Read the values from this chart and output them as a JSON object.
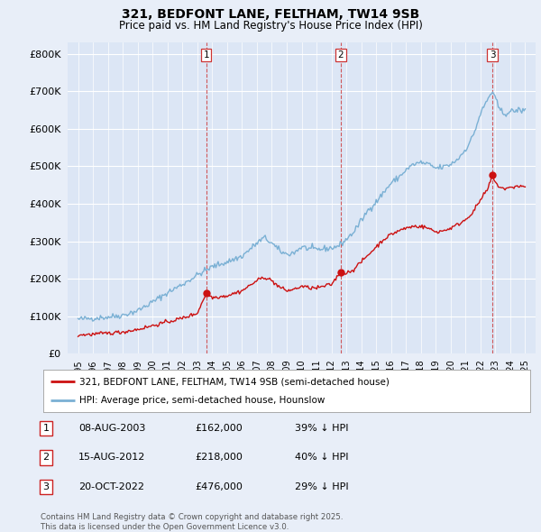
{
  "title": "321, BEDFONT LANE, FELTHAM, TW14 9SB",
  "subtitle": "Price paid vs. HM Land Registry's House Price Index (HPI)",
  "background_color": "#e8eef8",
  "plot_background": "#dce6f5",
  "sale_info": [
    {
      "num": "1",
      "date": "08-AUG-2003",
      "price": "£162,000",
      "hpi": "39% ↓ HPI"
    },
    {
      "num": "2",
      "date": "15-AUG-2012",
      "price": "£218,000",
      "hpi": "40% ↓ HPI"
    },
    {
      "num": "3",
      "date": "20-OCT-2022",
      "price": "£476,000",
      "hpi": "29% ↓ HPI"
    }
  ],
  "legend_red_label": "321, BEDFONT LANE, FELTHAM, TW14 9SB (semi-detached house)",
  "legend_blue_label": "HPI: Average price, semi-detached house, Hounslow",
  "footnote": "Contains HM Land Registry data © Crown copyright and database right 2025.\nThis data is licensed under the Open Government Licence v3.0.",
  "ylim": [
    0,
    830000
  ],
  "yticks": [
    0,
    100000,
    200000,
    300000,
    400000,
    500000,
    600000,
    700000,
    800000
  ],
  "red_line_color": "#cc1111",
  "blue_line_color": "#7ab0d4",
  "vline_color": "#cc3333",
  "dot_color": "#cc1111",
  "sale_year_decimals": [
    2003.6,
    2012.63,
    2022.8
  ],
  "sale_prices": [
    162000,
    218000,
    476000
  ],
  "hpi_anchors": [
    [
      1995.0,
      92000
    ],
    [
      1996.0,
      95000
    ],
    [
      1997.0,
      98000
    ],
    [
      1998.0,
      103000
    ],
    [
      1999.0,
      115000
    ],
    [
      2000.0,
      138000
    ],
    [
      2001.0,
      163000
    ],
    [
      2002.0,
      185000
    ],
    [
      2003.0,
      210000
    ],
    [
      2004.0,
      232000
    ],
    [
      2005.0,
      245000
    ],
    [
      2006.0,
      260000
    ],
    [
      2007.0,
      295000
    ],
    [
      2007.5,
      310000
    ],
    [
      2008.0,
      295000
    ],
    [
      2008.5,
      275000
    ],
    [
      2009.0,
      265000
    ],
    [
      2009.5,
      270000
    ],
    [
      2010.0,
      285000
    ],
    [
      2010.5,
      280000
    ],
    [
      2011.0,
      278000
    ],
    [
      2011.5,
      280000
    ],
    [
      2012.0,
      282000
    ],
    [
      2012.5,
      288000
    ],
    [
      2013.0,
      305000
    ],
    [
      2013.5,
      325000
    ],
    [
      2014.0,
      355000
    ],
    [
      2014.5,
      385000
    ],
    [
      2015.0,
      405000
    ],
    [
      2015.5,
      430000
    ],
    [
      2016.0,
      455000
    ],
    [
      2016.5,
      470000
    ],
    [
      2017.0,
      490000
    ],
    [
      2017.5,
      505000
    ],
    [
      2018.0,
      510000
    ],
    [
      2018.5,
      505000
    ],
    [
      2019.0,
      495000
    ],
    [
      2019.5,
      498000
    ],
    [
      2020.0,
      505000
    ],
    [
      2020.5,
      520000
    ],
    [
      2021.0,
      545000
    ],
    [
      2021.5,
      580000
    ],
    [
      2022.0,
      640000
    ],
    [
      2022.5,
      680000
    ],
    [
      2022.8,
      700000
    ],
    [
      2023.0,
      680000
    ],
    [
      2023.3,
      650000
    ],
    [
      2023.6,
      640000
    ],
    [
      2024.0,
      645000
    ],
    [
      2024.5,
      650000
    ],
    [
      2025.0,
      648000
    ]
  ],
  "red_anchors": [
    [
      1995.0,
      50000
    ],
    [
      1996.0,
      52000
    ],
    [
      1997.0,
      55000
    ],
    [
      1998.0,
      58000
    ],
    [
      1999.0,
      65000
    ],
    [
      2000.0,
      75000
    ],
    [
      2001.0,
      85000
    ],
    [
      2002.0,
      95000
    ],
    [
      2003.0,
      108000
    ],
    [
      2003.6,
      162000
    ],
    [
      2004.0,
      150000
    ],
    [
      2005.0,
      155000
    ],
    [
      2006.0,
      168000
    ],
    [
      2007.0,
      195000
    ],
    [
      2007.5,
      205000
    ],
    [
      2008.0,
      195000
    ],
    [
      2008.5,
      178000
    ],
    [
      2009.0,
      168000
    ],
    [
      2009.5,
      172000
    ],
    [
      2010.0,
      180000
    ],
    [
      2010.5,
      176000
    ],
    [
      2011.0,
      175000
    ],
    [
      2011.5,
      180000
    ],
    [
      2012.0,
      185000
    ],
    [
      2012.63,
      218000
    ],
    [
      2013.0,
      215000
    ],
    [
      2013.5,
      225000
    ],
    [
      2014.0,
      245000
    ],
    [
      2014.5,
      265000
    ],
    [
      2015.0,
      285000
    ],
    [
      2015.5,
      305000
    ],
    [
      2016.0,
      318000
    ],
    [
      2016.5,
      328000
    ],
    [
      2017.0,
      335000
    ],
    [
      2017.5,
      340000
    ],
    [
      2018.0,
      340000
    ],
    [
      2018.5,
      335000
    ],
    [
      2019.0,
      325000
    ],
    [
      2019.5,
      328000
    ],
    [
      2020.0,
      335000
    ],
    [
      2020.5,
      345000
    ],
    [
      2021.0,
      358000
    ],
    [
      2021.5,
      378000
    ],
    [
      2022.0,
      410000
    ],
    [
      2022.5,
      440000
    ],
    [
      2022.8,
      476000
    ],
    [
      2023.0,
      455000
    ],
    [
      2023.3,
      445000
    ],
    [
      2023.6,
      440000
    ],
    [
      2024.0,
      442000
    ],
    [
      2024.5,
      448000
    ],
    [
      2025.0,
      445000
    ]
  ],
  "xlim_left": 1994.3,
  "xlim_right": 2025.7,
  "xtick_years": [
    1995,
    1996,
    1997,
    1998,
    1999,
    2000,
    2001,
    2002,
    2003,
    2004,
    2005,
    2006,
    2007,
    2008,
    2009,
    2010,
    2011,
    2012,
    2013,
    2014,
    2015,
    2016,
    2017,
    2018,
    2019,
    2020,
    2021,
    2022,
    2023,
    2024,
    2025
  ]
}
